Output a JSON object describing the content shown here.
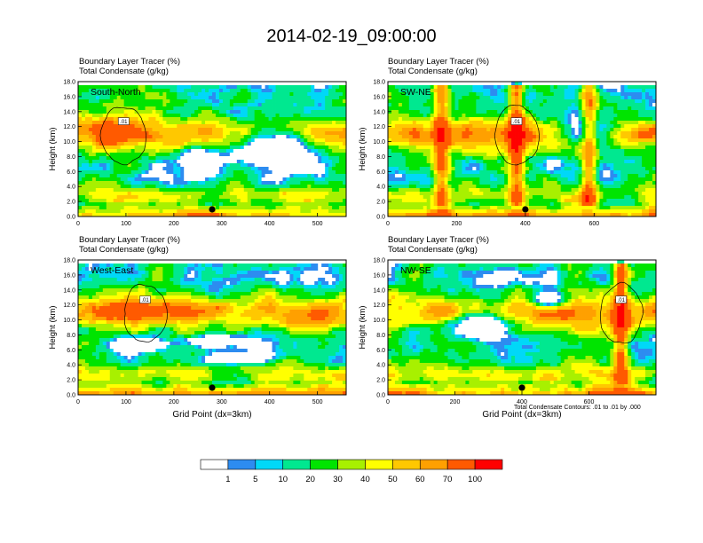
{
  "figure": {
    "title": "2014-02-19_09:00:00",
    "footnote": "Total Condensate Contours: .01 to .01 by .000"
  },
  "colorbar": {
    "colors": [
      "#ffffff",
      "#2d8cf0",
      "#00d8f8",
      "#00e890",
      "#00e400",
      "#a8f000",
      "#ffff00",
      "#ffc800",
      "#ffa000",
      "#ff5a00",
      "#ff0000"
    ],
    "labels": [
      "1",
      "5",
      "10",
      "20",
      "30",
      "40",
      "50",
      "60",
      "70",
      "100"
    ]
  },
  "chart_data": [
    {
      "type": "heatmap",
      "panel_label": "South-North",
      "line1": "Boundary Layer Tracer   (%)",
      "line2": "Total Condensate   (g/kg)",
      "ylabel": "Height (km)",
      "xlabel": "",
      "xlim": [
        0,
        560
      ],
      "ylim": [
        0,
        18
      ],
      "xticks": [
        "0",
        "100",
        "200",
        "300",
        "400",
        "500"
      ],
      "yticks": [
        "0.0",
        "2.0",
        "4.0",
        "6.0",
        "8.0",
        "10.0",
        "12.0",
        "14.0",
        "16.0",
        "18.0"
      ],
      "contour_labels": [
        ".01"
      ],
      "marker_x": 280
    },
    {
      "type": "heatmap",
      "panel_label": "SW-NE",
      "line1": "Boundary Layer Tracer   (%)",
      "line2": "Total Condensate   (g/kg)",
      "ylabel": "Height (km)",
      "xlabel": "",
      "xlim": [
        0,
        780
      ],
      "ylim": [
        0,
        18
      ],
      "xticks": [
        "0",
        "200",
        "400",
        "600"
      ],
      "yticks": [
        "0.0",
        "2.0",
        "4.0",
        "6.0",
        "8.0",
        "10.0",
        "12.0",
        "14.0",
        "16.0",
        "18.0"
      ],
      "contour_labels": [
        ".01"
      ],
      "marker_x": 400
    },
    {
      "type": "heatmap",
      "panel_label": "West-East",
      "line1": "Boundary Layer Tracer   (%)",
      "line2": "Total Condensate   (g/kg)",
      "ylabel": "Height (km)",
      "xlabel": "Grid Point (dx=3km)",
      "xlim": [
        0,
        560
      ],
      "ylim": [
        0,
        18
      ],
      "xticks": [
        "0",
        "100",
        "200",
        "300",
        "400",
        "500"
      ],
      "yticks": [
        "0.0",
        "2.0",
        "4.0",
        "6.0",
        "8.0",
        "10.0",
        "12.0",
        "14.0",
        "16.0",
        "18.0"
      ],
      "contour_labels": [
        ".01"
      ],
      "marker_x": 280
    },
    {
      "type": "heatmap",
      "panel_label": "NW-SE",
      "line1": "Boundary Layer Tracer   (%)",
      "line2": "Total Condensate   (g/kg)",
      "ylabel": "Height (km)",
      "xlabel": "Grid Point (dx=3km)",
      "xlim": [
        0,
        800
      ],
      "ylim": [
        0,
        18
      ],
      "xticks": [
        "0",
        "200",
        "400",
        "600"
      ],
      "yticks": [
        "0.0",
        "2.0",
        "4.0",
        "6.0",
        "8.0",
        "10.0",
        "12.0",
        "14.0",
        "16.0",
        "18.0"
      ],
      "contour_labels": [
        ".01"
      ],
      "marker_x": 400
    }
  ]
}
